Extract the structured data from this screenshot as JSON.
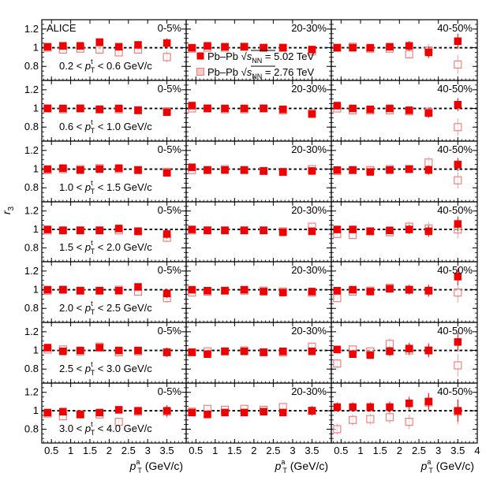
{
  "chart_data": {
    "type": "scatter",
    "experiment_label": "ALICE",
    "ylabel": "r",
    "ylabel_sub": "3",
    "xlabel": "p",
    "xlabel_sup": "a",
    "xlabel_sub": "T",
    "xlabel_unit": "(GeV/c)",
    "xlim": [
      0.25,
      4.0
    ],
    "ylim": [
      0.65,
      1.3
    ],
    "x_ticks": [
      0.5,
      1,
      1.5,
      2,
      2.5,
      3,
      3.5,
      4
    ],
    "x_tick_labels": [
      "0.5",
      "1",
      "1.5",
      "2",
      "2.5",
      "3",
      "3.5",
      "4"
    ],
    "y_ticks": [
      0.8,
      1,
      1.2
    ],
    "y_tick_labels": [
      "0.8",
      "1",
      "1.2"
    ],
    "reference_line": 1,
    "columns": [
      "0-5%",
      "20-30%",
      "40-50%"
    ],
    "legend": {
      "location": "top-left of middle panel in first row",
      "entries": [
        {
          "series": "5.02",
          "text": "Pb–Pb",
          "sqrt_label": "s",
          "sqrt_sub": "NN",
          "value_text": "= 5.02 TeV",
          "color": "#ee0000",
          "marker": "filled-square"
        },
        {
          "series": "2.76",
          "text": "Pb–Pb",
          "sqrt_label": "s",
          "sqrt_sub": "NN",
          "value_text": "= 2.76 TeV",
          "color": "#f4a0a0",
          "marker": "open-square"
        }
      ]
    },
    "x": [
      0.4,
      0.8,
      1.25,
      1.75,
      2.25,
      2.75,
      3.5
    ],
    "rows": [
      {
        "label": {
          "pre": "0.2 < ",
          "p": "p",
          "sup": "t",
          "sub": "T",
          "post": " < 0.6 GeV/c"
        },
        "panels": [
          {
            "s5": [
              1.01,
              1.02,
              1.02,
              1.06,
              1.01,
              1.03,
              1.05
            ],
            "e5": [
              0.02,
              0.02,
              0.02,
              0.03,
              0.03,
              0.04,
              0.05
            ],
            "s2": [
              1.0,
              0.98,
              0.99,
              0.98,
              0.95,
              0.98,
              0.9
            ],
            "e2": [
              0.02,
              0.02,
              0.02,
              0.03,
              0.03,
              0.04,
              0.06
            ]
          },
          {
            "s5": [
              1.0,
              1.02,
              1.01,
              1.01,
              1.0,
              1.0,
              0.98
            ],
            "e5": [
              0.02,
              0.02,
              0.02,
              0.02,
              0.03,
              0.03,
              0.04
            ],
            "s2": [
              0.99,
              1.0,
              1.0,
              1.01,
              1.0,
              1.0,
              0.96
            ],
            "e2": [
              0.02,
              0.02,
              0.02,
              0.02,
              0.03,
              0.03,
              0.04
            ]
          },
          {
            "s5": [
              1.0,
              1.0,
              1.0,
              1.01,
              1.02,
              0.95,
              1.07
            ],
            "e5": [
              0.03,
              0.03,
              0.03,
              0.04,
              0.05,
              0.06,
              0.08
            ],
            "s2": [
              1.0,
              1.01,
              0.99,
              0.99,
              0.93,
              0.97,
              0.82
            ],
            "e2": [
              0.03,
              0.03,
              0.03,
              0.04,
              0.05,
              0.07,
              0.1
            ]
          }
        ]
      },
      {
        "label": {
          "pre": "0.6 < ",
          "p": "p",
          "sup": "t",
          "sub": "T",
          "post": " < 1.0 GeV/c"
        },
        "panels": [
          {
            "s5": [
              1.0,
              1.0,
              1.0,
              0.99,
              1.0,
              0.98,
              0.96
            ],
            "e5": [
              0.02,
              0.02,
              0.02,
              0.02,
              0.02,
              0.03,
              0.04
            ],
            "s2": [
              1.0,
              0.99,
              1.0,
              0.99,
              0.99,
              0.98,
              0.97
            ],
            "e2": [
              0.02,
              0.02,
              0.02,
              0.02,
              0.02,
              0.03,
              0.04
            ]
          },
          {
            "s5": [
              1.03,
              1.0,
              1.0,
              1.0,
              1.0,
              0.99,
              0.94
            ],
            "e5": [
              0.02,
              0.02,
              0.02,
              0.02,
              0.02,
              0.03,
              0.04
            ],
            "s2": [
              1.0,
              1.0,
              0.99,
              0.99,
              1.0,
              0.98,
              0.95
            ],
            "e2": [
              0.02,
              0.02,
              0.02,
              0.02,
              0.02,
              0.03,
              0.04
            ]
          },
          {
            "s5": [
              1.03,
              1.0,
              0.99,
              1.0,
              0.98,
              0.95,
              1.04
            ],
            "e5": [
              0.03,
              0.03,
              0.03,
              0.03,
              0.04,
              0.05,
              0.07
            ],
            "s2": [
              1.0,
              0.98,
              0.98,
              0.98,
              0.97,
              0.96,
              0.8
            ],
            "e2": [
              0.03,
              0.03,
              0.03,
              0.03,
              0.04,
              0.06,
              0.09
            ]
          }
        ]
      },
      {
        "label": {
          "pre": "1.0 < ",
          "p": "p",
          "sup": "t",
          "sub": "T",
          "post": " < 1.5 GeV/c"
        },
        "panels": [
          {
            "s5": [
              1.0,
              1.01,
              0.99,
              1.0,
              1.01,
              0.99,
              0.96
            ],
            "e5": [
              0.02,
              0.02,
              0.02,
              0.02,
              0.02,
              0.03,
              0.04
            ],
            "s2": [
              0.99,
              1.0,
              1.0,
              1.01,
              1.0,
              0.99,
              0.97
            ],
            "e2": [
              0.02,
              0.02,
              0.02,
              0.02,
              0.02,
              0.03,
              0.04
            ]
          },
          {
            "s5": [
              1.02,
              0.99,
              0.99,
              0.99,
              0.98,
              0.97,
              0.98
            ],
            "e5": [
              0.02,
              0.02,
              0.02,
              0.02,
              0.02,
              0.03,
              0.04
            ],
            "s2": [
              0.99,
              0.99,
              1.0,
              0.99,
              0.98,
              0.97,
              1.0
            ],
            "e2": [
              0.02,
              0.02,
              0.02,
              0.02,
              0.02,
              0.03,
              0.04
            ]
          },
          {
            "s5": [
              0.99,
              0.99,
              0.97,
              0.99,
              1.0,
              0.99,
              1.05
            ],
            "e5": [
              0.03,
              0.03,
              0.03,
              0.03,
              0.04,
              0.05,
              0.07
            ],
            "s2": [
              0.98,
              0.99,
              0.99,
              1.0,
              1.0,
              1.07,
              0.88
            ],
            "e2": [
              0.03,
              0.03,
              0.03,
              0.03,
              0.04,
              0.06,
              0.09
            ]
          }
        ]
      },
      {
        "label": {
          "pre": "1.5 < ",
          "p": "p",
          "sup": "t",
          "sub": "T",
          "post": " < 2.0 GeV/c"
        },
        "panels": [
          {
            "s5": [
              1.0,
              0.99,
              0.99,
              0.99,
              1.01,
              0.98,
              0.95
            ],
            "e5": [
              0.02,
              0.02,
              0.02,
              0.02,
              0.02,
              0.03,
              0.05
            ],
            "s2": [
              0.99,
              0.99,
              0.99,
              0.99,
              0.99,
              0.98,
              0.91
            ],
            "e2": [
              0.02,
              0.02,
              0.02,
              0.02,
              0.02,
              0.03,
              0.05
            ]
          },
          {
            "s5": [
              1.0,
              0.99,
              0.99,
              0.99,
              0.99,
              0.97,
              0.98
            ],
            "e5": [
              0.02,
              0.02,
              0.02,
              0.02,
              0.02,
              0.03,
              0.04
            ],
            "s2": [
              0.99,
              0.99,
              0.99,
              0.99,
              0.99,
              0.98,
              1.03
            ],
            "e2": [
              0.02,
              0.02,
              0.02,
              0.02,
              0.02,
              0.03,
              0.04
            ]
          },
          {
            "s5": [
              1.0,
              1.0,
              0.98,
              0.99,
              1.0,
              0.98,
              1.06
            ],
            "e5": [
              0.03,
              0.03,
              0.03,
              0.04,
              0.05,
              0.06,
              0.08
            ],
            "s2": [
              0.95,
              0.94,
              0.98,
              0.97,
              1.03,
              1.01,
              1.0
            ],
            "e2": [
              0.03,
              0.03,
              0.03,
              0.04,
              0.05,
              0.07,
              0.1
            ]
          }
        ]
      },
      {
        "label": {
          "pre": "2.0 < ",
          "p": "p",
          "sup": "t",
          "sub": "T",
          "post": " < 2.5 GeV/c"
        },
        "panels": [
          {
            "s5": [
              1.0,
              1.0,
              0.99,
              0.99,
              0.99,
              1.03,
              0.96
            ],
            "e5": [
              0.02,
              0.02,
              0.02,
              0.02,
              0.02,
              0.03,
              0.05
            ],
            "s2": [
              0.99,
              1.0,
              0.99,
              0.99,
              1.0,
              0.98,
              0.91
            ],
            "e2": [
              0.02,
              0.02,
              0.02,
              0.02,
              0.02,
              0.03,
              0.05
            ]
          },
          {
            "s5": [
              1.0,
              0.99,
              0.99,
              1.0,
              0.98,
              0.97,
              0.98
            ],
            "e5": [
              0.02,
              0.02,
              0.02,
              0.02,
              0.02,
              0.03,
              0.04
            ],
            "s2": [
              0.97,
              0.98,
              0.99,
              0.99,
              0.99,
              0.98,
              0.97
            ],
            "e2": [
              0.02,
              0.02,
              0.02,
              0.02,
              0.02,
              0.03,
              0.04
            ]
          },
          {
            "s5": [
              0.99,
              1.0,
              0.98,
              1.01,
              1.0,
              0.99,
              1.14
            ],
            "e5": [
              0.03,
              0.03,
              0.03,
              0.04,
              0.05,
              0.06,
              0.09
            ],
            "s2": [
              0.91,
              0.98,
              0.99,
              1.02,
              1.0,
              0.99,
              0.97
            ],
            "e2": [
              0.03,
              0.03,
              0.03,
              0.04,
              0.05,
              0.07,
              0.11
            ]
          }
        ]
      },
      {
        "label": {
          "pre": "2.5 < ",
          "p": "p",
          "sup": "t",
          "sub": "T",
          "post": " < 3.0 GeV/c"
        },
        "panels": [
          {
            "s5": [
              1.03,
              0.99,
              1.0,
              1.03,
              1.0,
              1.0,
              0.98
            ],
            "e5": [
              0.02,
              0.02,
              0.02,
              0.03,
              0.03,
              0.03,
              0.05
            ],
            "s2": [
              1.01,
              1.01,
              0.99,
              1.04,
              0.98,
              0.99,
              0.98
            ],
            "e2": [
              0.02,
              0.02,
              0.02,
              0.03,
              0.03,
              0.03,
              0.05
            ]
          },
          {
            "s5": [
              0.98,
              0.96,
              0.99,
              0.99,
              0.98,
              0.99,
              0.99
            ],
            "e5": [
              0.02,
              0.02,
              0.02,
              0.02,
              0.02,
              0.03,
              0.04
            ],
            "s2": [
              0.98,
              0.99,
              0.99,
              1.0,
              0.98,
              0.98,
              1.04
            ],
            "e2": [
              0.02,
              0.02,
              0.02,
              0.02,
              0.02,
              0.03,
              0.04
            ]
          },
          {
            "s5": [
              1.01,
              0.96,
              0.95,
              0.99,
              1.02,
              1.0,
              1.09
            ],
            "e5": [
              0.04,
              0.04,
              0.04,
              0.05,
              0.06,
              0.07,
              0.1
            ],
            "s2": [
              0.86,
              1.01,
              0.99,
              1.07,
              1.0,
              1.0,
              0.84
            ],
            "e2": [
              0.05,
              0.04,
              0.04,
              0.06,
              0.06,
              0.08,
              0.12
            ]
          }
        ]
      },
      {
        "label": {
          "pre": "3.0 < ",
          "p": "p",
          "sup": "t",
          "sub": "T",
          "post": " < 4.0 GeV/c"
        },
        "panels": [
          {
            "s5": [
              0.98,
              0.99,
              0.96,
              0.98,
              1.01,
              1.0,
              1.0
            ],
            "e5": [
              0.03,
              0.03,
              0.03,
              0.03,
              0.04,
              0.04,
              0.06
            ],
            "s2": [
              0.97,
              0.94,
              0.96,
              0.96,
              0.88,
              0.99,
              0.99
            ],
            "e2": [
              0.03,
              0.03,
              0.03,
              0.03,
              0.04,
              0.05,
              0.07
            ]
          },
          {
            "s5": [
              0.98,
              0.96,
              0.98,
              0.98,
              0.99,
              0.98,
              1.0
            ],
            "e5": [
              0.02,
              0.02,
              0.02,
              0.02,
              0.03,
              0.03,
              0.05
            ],
            "s2": [
              0.99,
              1.02,
              1.01,
              1.02,
              1.01,
              1.04,
              1.0
            ],
            "e2": [
              0.02,
              0.02,
              0.02,
              0.02,
              0.03,
              0.03,
              0.05
            ]
          },
          {
            "s5": [
              1.04,
              1.04,
              1.04,
              1.04,
              1.08,
              1.1,
              1.0
            ],
            "e5": [
              0.05,
              0.05,
              0.05,
              0.06,
              0.07,
              0.09,
              0.12
            ],
            "s2": [
              0.8,
              0.9,
              0.91,
              0.93,
              0.88,
              1.09,
              0.99
            ],
            "e2": [
              0.06,
              0.06,
              0.06,
              0.07,
              0.08,
              0.1,
              0.14
            ]
          }
        ]
      }
    ]
  }
}
